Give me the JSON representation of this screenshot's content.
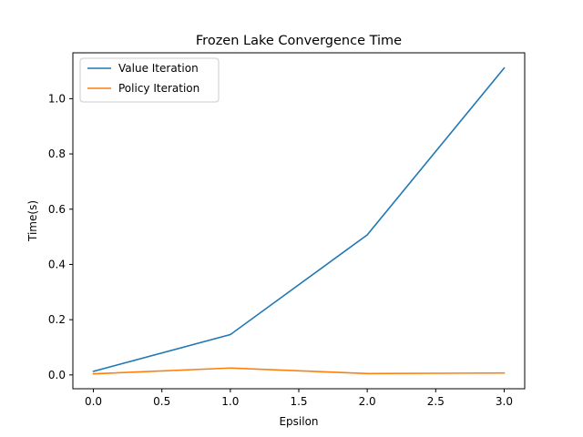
{
  "chart_data": {
    "type": "line",
    "title": "Frozen Lake Convergence Time",
    "xlabel": "Epsilon",
    "ylabel": "Time(s)",
    "x": [
      0.0,
      1.0,
      2.0,
      3.0
    ],
    "series": [
      {
        "name": "Value Iteration",
        "color": "#1f77b4",
        "values": [
          0.013,
          0.146,
          0.507,
          1.111
        ]
      },
      {
        "name": "Policy Iteration",
        "color": "#ff7f0e",
        "values": [
          0.004,
          0.025,
          0.005,
          0.007
        ]
      }
    ],
    "xlim": [
      -0.15,
      3.15
    ],
    "ylim": [
      -0.05,
      1.166
    ],
    "xticks": [
      0.0,
      0.5,
      1.0,
      1.5,
      2.0,
      2.5,
      3.0
    ],
    "xtick_labels": [
      "0.0",
      "0.5",
      "1.0",
      "1.5",
      "2.0",
      "2.5",
      "3.0"
    ],
    "yticks": [
      0.0,
      0.2,
      0.4,
      0.6,
      0.8,
      1.0
    ],
    "ytick_labels": [
      "0.0",
      "0.2",
      "0.4",
      "0.6",
      "0.8",
      "1.0"
    ],
    "grid": false,
    "legend_position": "top-left"
  }
}
